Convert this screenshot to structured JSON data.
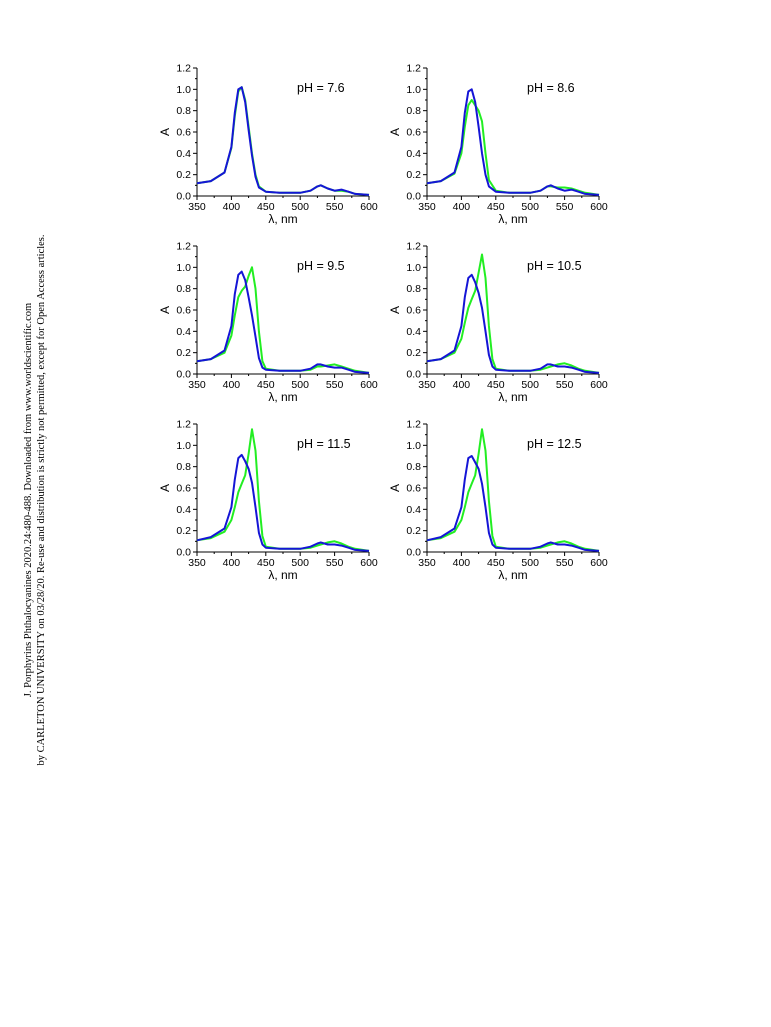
{
  "side_note": {
    "line1": "J. Porphyrins Phthalocyanines 2020.24:480-488. Downloaded from www.worldscientific.com",
    "line2": "by CARLETON UNIVERSITY on 03/28/20. Re-use and distribution is strictly not permitted, except for Open Access articles."
  },
  "colors": {
    "green": "#22ee22",
    "blue": "#1515d6"
  },
  "chart_data": [
    {
      "type": "line",
      "annotation": "pH = 7.6",
      "xlabel": "λ, nm",
      "ylabel": "A",
      "xlim": [
        350,
        600
      ],
      "ylim": [
        0,
        1.2
      ],
      "xticks": [
        "350",
        "400",
        "450",
        "500",
        "550",
        "600"
      ],
      "yticks": [
        "0.0",
        "0.2",
        "0.4",
        "0.6",
        "0.8",
        "1.0",
        "1.2"
      ],
      "series": [
        {
          "color": "#22ee22",
          "x": [
            350,
            370,
            390,
            400,
            405,
            410,
            415,
            420,
            425,
            430,
            435,
            440,
            450,
            470,
            500,
            515,
            525,
            530,
            540,
            550,
            560,
            570,
            580,
            600
          ],
          "y": [
            0.12,
            0.14,
            0.22,
            0.45,
            0.75,
            0.98,
            1.02,
            0.9,
            0.65,
            0.4,
            0.2,
            0.09,
            0.04,
            0.03,
            0.03,
            0.05,
            0.09,
            0.1,
            0.07,
            0.05,
            0.05,
            0.04,
            0.02,
            0.01
          ]
        },
        {
          "color": "#1515d6",
          "x": [
            350,
            370,
            390,
            400,
            405,
            410,
            415,
            420,
            425,
            430,
            435,
            440,
            450,
            470,
            500,
            515,
            525,
            530,
            540,
            550,
            560,
            570,
            580,
            600
          ],
          "y": [
            0.12,
            0.14,
            0.22,
            0.46,
            0.78,
            1.0,
            1.02,
            0.88,
            0.62,
            0.38,
            0.18,
            0.08,
            0.04,
            0.03,
            0.03,
            0.05,
            0.09,
            0.1,
            0.07,
            0.05,
            0.06,
            0.04,
            0.02,
            0.01
          ]
        }
      ]
    },
    {
      "type": "line",
      "annotation": "pH = 8.6",
      "xlabel": "λ, nm",
      "ylabel": "A",
      "xlim": [
        350,
        600
      ],
      "ylim": [
        0,
        1.2
      ],
      "xticks": [
        "350",
        "400",
        "450",
        "500",
        "550",
        "600"
      ],
      "yticks": [
        "0.0",
        "0.2",
        "0.4",
        "0.6",
        "0.8",
        "1.0",
        "1.2"
      ],
      "series": [
        {
          "color": "#22ee22",
          "x": [
            350,
            370,
            390,
            400,
            405,
            410,
            415,
            420,
            425,
            430,
            435,
            440,
            450,
            470,
            500,
            515,
            525,
            530,
            540,
            550,
            560,
            570,
            580,
            600
          ],
          "y": [
            0.12,
            0.14,
            0.21,
            0.4,
            0.65,
            0.85,
            0.9,
            0.85,
            0.8,
            0.7,
            0.4,
            0.15,
            0.05,
            0.03,
            0.03,
            0.05,
            0.09,
            0.09,
            0.08,
            0.08,
            0.07,
            0.05,
            0.03,
            0.01
          ]
        },
        {
          "color": "#1515d6",
          "x": [
            350,
            370,
            390,
            400,
            405,
            410,
            415,
            420,
            425,
            430,
            435,
            440,
            450,
            470,
            500,
            515,
            525,
            530,
            540,
            550,
            560,
            570,
            580,
            600
          ],
          "y": [
            0.12,
            0.14,
            0.22,
            0.46,
            0.78,
            0.98,
            1.0,
            0.88,
            0.65,
            0.4,
            0.2,
            0.09,
            0.04,
            0.03,
            0.03,
            0.05,
            0.09,
            0.1,
            0.07,
            0.05,
            0.06,
            0.04,
            0.02,
            0.01
          ]
        }
      ]
    },
    {
      "type": "line",
      "annotation": "pH = 9.5",
      "xlabel": "λ, nm",
      "ylabel": "A",
      "xlim": [
        350,
        600
      ],
      "ylim": [
        0,
        1.2
      ],
      "xticks": [
        "350",
        "400",
        "450",
        "500",
        "550",
        "600"
      ],
      "yticks": [
        "0.0",
        "0.2",
        "0.4",
        "0.6",
        "0.8",
        "1.0",
        "1.2"
      ],
      "series": [
        {
          "color": "#22ee22",
          "x": [
            350,
            370,
            390,
            400,
            405,
            410,
            415,
            420,
            425,
            430,
            435,
            440,
            445,
            450,
            470,
            500,
            515,
            525,
            530,
            540,
            550,
            560,
            570,
            580,
            600
          ],
          "y": [
            0.12,
            0.14,
            0.2,
            0.36,
            0.55,
            0.72,
            0.78,
            0.82,
            0.92,
            1.0,
            0.8,
            0.4,
            0.12,
            0.05,
            0.03,
            0.03,
            0.04,
            0.07,
            0.07,
            0.08,
            0.09,
            0.07,
            0.05,
            0.03,
            0.01
          ]
        },
        {
          "color": "#1515d6",
          "x": [
            350,
            370,
            390,
            400,
            405,
            410,
            415,
            420,
            425,
            430,
            435,
            440,
            445,
            450,
            470,
            500,
            515,
            525,
            530,
            540,
            550,
            560,
            570,
            580,
            600
          ],
          "y": [
            0.12,
            0.14,
            0.22,
            0.45,
            0.75,
            0.93,
            0.96,
            0.88,
            0.72,
            0.55,
            0.35,
            0.15,
            0.06,
            0.04,
            0.03,
            0.03,
            0.05,
            0.09,
            0.09,
            0.07,
            0.06,
            0.06,
            0.04,
            0.02,
            0.01
          ]
        }
      ]
    },
    {
      "type": "line",
      "annotation": "pH = 10.5",
      "xlabel": "λ, nm",
      "ylabel": "A",
      "xlim": [
        350,
        600
      ],
      "ylim": [
        0,
        1.2
      ],
      "xticks": [
        "350",
        "400",
        "450",
        "500",
        "550",
        "600"
      ],
      "yticks": [
        "0.0",
        "0.2",
        "0.4",
        "0.6",
        "0.8",
        "1.0",
        "1.2"
      ],
      "series": [
        {
          "color": "#22ee22",
          "x": [
            350,
            370,
            390,
            400,
            405,
            410,
            415,
            420,
            425,
            430,
            435,
            440,
            445,
            450,
            470,
            500,
            515,
            525,
            530,
            540,
            550,
            560,
            570,
            580,
            600
          ],
          "y": [
            0.12,
            0.14,
            0.2,
            0.33,
            0.48,
            0.62,
            0.7,
            0.78,
            0.95,
            1.12,
            0.9,
            0.45,
            0.14,
            0.05,
            0.03,
            0.03,
            0.04,
            0.06,
            0.07,
            0.09,
            0.1,
            0.08,
            0.05,
            0.03,
            0.01
          ]
        },
        {
          "color": "#1515d6",
          "x": [
            350,
            370,
            390,
            400,
            405,
            410,
            415,
            420,
            425,
            430,
            435,
            440,
            445,
            450,
            470,
            500,
            515,
            525,
            530,
            540,
            550,
            560,
            570,
            580,
            600
          ],
          "y": [
            0.12,
            0.14,
            0.22,
            0.45,
            0.72,
            0.9,
            0.93,
            0.86,
            0.76,
            0.62,
            0.4,
            0.18,
            0.07,
            0.04,
            0.03,
            0.03,
            0.05,
            0.09,
            0.09,
            0.07,
            0.07,
            0.06,
            0.04,
            0.02,
            0.01
          ]
        }
      ]
    },
    {
      "type": "line",
      "annotation": "pH = 11.5",
      "xlabel": "λ, nm",
      "ylabel": "A",
      "xlim": [
        350,
        600
      ],
      "ylim": [
        0,
        1.2
      ],
      "xticks": [
        "350",
        "400",
        "450",
        "500",
        "550",
        "600"
      ],
      "yticks": [
        "0.0",
        "0.2",
        "0.4",
        "0.6",
        "0.8",
        "1.0",
        "1.2"
      ],
      "series": [
        {
          "color": "#22ee22",
          "x": [
            350,
            370,
            390,
            400,
            405,
            410,
            415,
            420,
            425,
            430,
            435,
            440,
            445,
            450,
            470,
            500,
            515,
            525,
            530,
            540,
            550,
            560,
            570,
            580,
            600
          ],
          "y": [
            0.11,
            0.13,
            0.19,
            0.3,
            0.42,
            0.56,
            0.64,
            0.72,
            0.92,
            1.15,
            0.95,
            0.48,
            0.15,
            0.05,
            0.03,
            0.03,
            0.04,
            0.06,
            0.07,
            0.09,
            0.1,
            0.08,
            0.05,
            0.03,
            0.01
          ]
        },
        {
          "color": "#1515d6",
          "x": [
            350,
            370,
            390,
            400,
            405,
            410,
            415,
            420,
            425,
            430,
            435,
            440,
            445,
            450,
            470,
            500,
            515,
            525,
            530,
            540,
            550,
            560,
            570,
            580,
            600
          ],
          "y": [
            0.11,
            0.14,
            0.22,
            0.42,
            0.68,
            0.88,
            0.91,
            0.85,
            0.78,
            0.65,
            0.42,
            0.18,
            0.07,
            0.04,
            0.03,
            0.03,
            0.05,
            0.08,
            0.09,
            0.07,
            0.07,
            0.06,
            0.04,
            0.02,
            0.01
          ]
        }
      ]
    },
    {
      "type": "line",
      "annotation": "pH = 12.5",
      "xlabel": "λ, nm",
      "ylabel": "A",
      "xlim": [
        350,
        600
      ],
      "ylim": [
        0,
        1.2
      ],
      "xticks": [
        "350",
        "400",
        "450",
        "500",
        "550",
        "600"
      ],
      "yticks": [
        "0.0",
        "0.2",
        "0.4",
        "0.6",
        "0.8",
        "1.0",
        "1.2"
      ],
      "series": [
        {
          "color": "#22ee22",
          "x": [
            350,
            370,
            390,
            400,
            405,
            410,
            415,
            420,
            425,
            430,
            435,
            440,
            445,
            450,
            470,
            500,
            515,
            525,
            530,
            540,
            550,
            560,
            570,
            580,
            600
          ],
          "y": [
            0.11,
            0.13,
            0.19,
            0.3,
            0.42,
            0.56,
            0.64,
            0.72,
            0.92,
            1.15,
            0.95,
            0.48,
            0.15,
            0.05,
            0.03,
            0.03,
            0.04,
            0.06,
            0.07,
            0.09,
            0.1,
            0.08,
            0.05,
            0.03,
            0.01
          ]
        },
        {
          "color": "#1515d6",
          "x": [
            350,
            370,
            390,
            400,
            405,
            410,
            415,
            420,
            425,
            430,
            435,
            440,
            445,
            450,
            470,
            500,
            515,
            525,
            530,
            540,
            550,
            560,
            570,
            580,
            600
          ],
          "y": [
            0.11,
            0.14,
            0.22,
            0.42,
            0.68,
            0.88,
            0.9,
            0.84,
            0.78,
            0.64,
            0.42,
            0.18,
            0.07,
            0.04,
            0.03,
            0.03,
            0.05,
            0.08,
            0.09,
            0.07,
            0.07,
            0.06,
            0.04,
            0.02,
            0.01
          ]
        }
      ]
    }
  ]
}
